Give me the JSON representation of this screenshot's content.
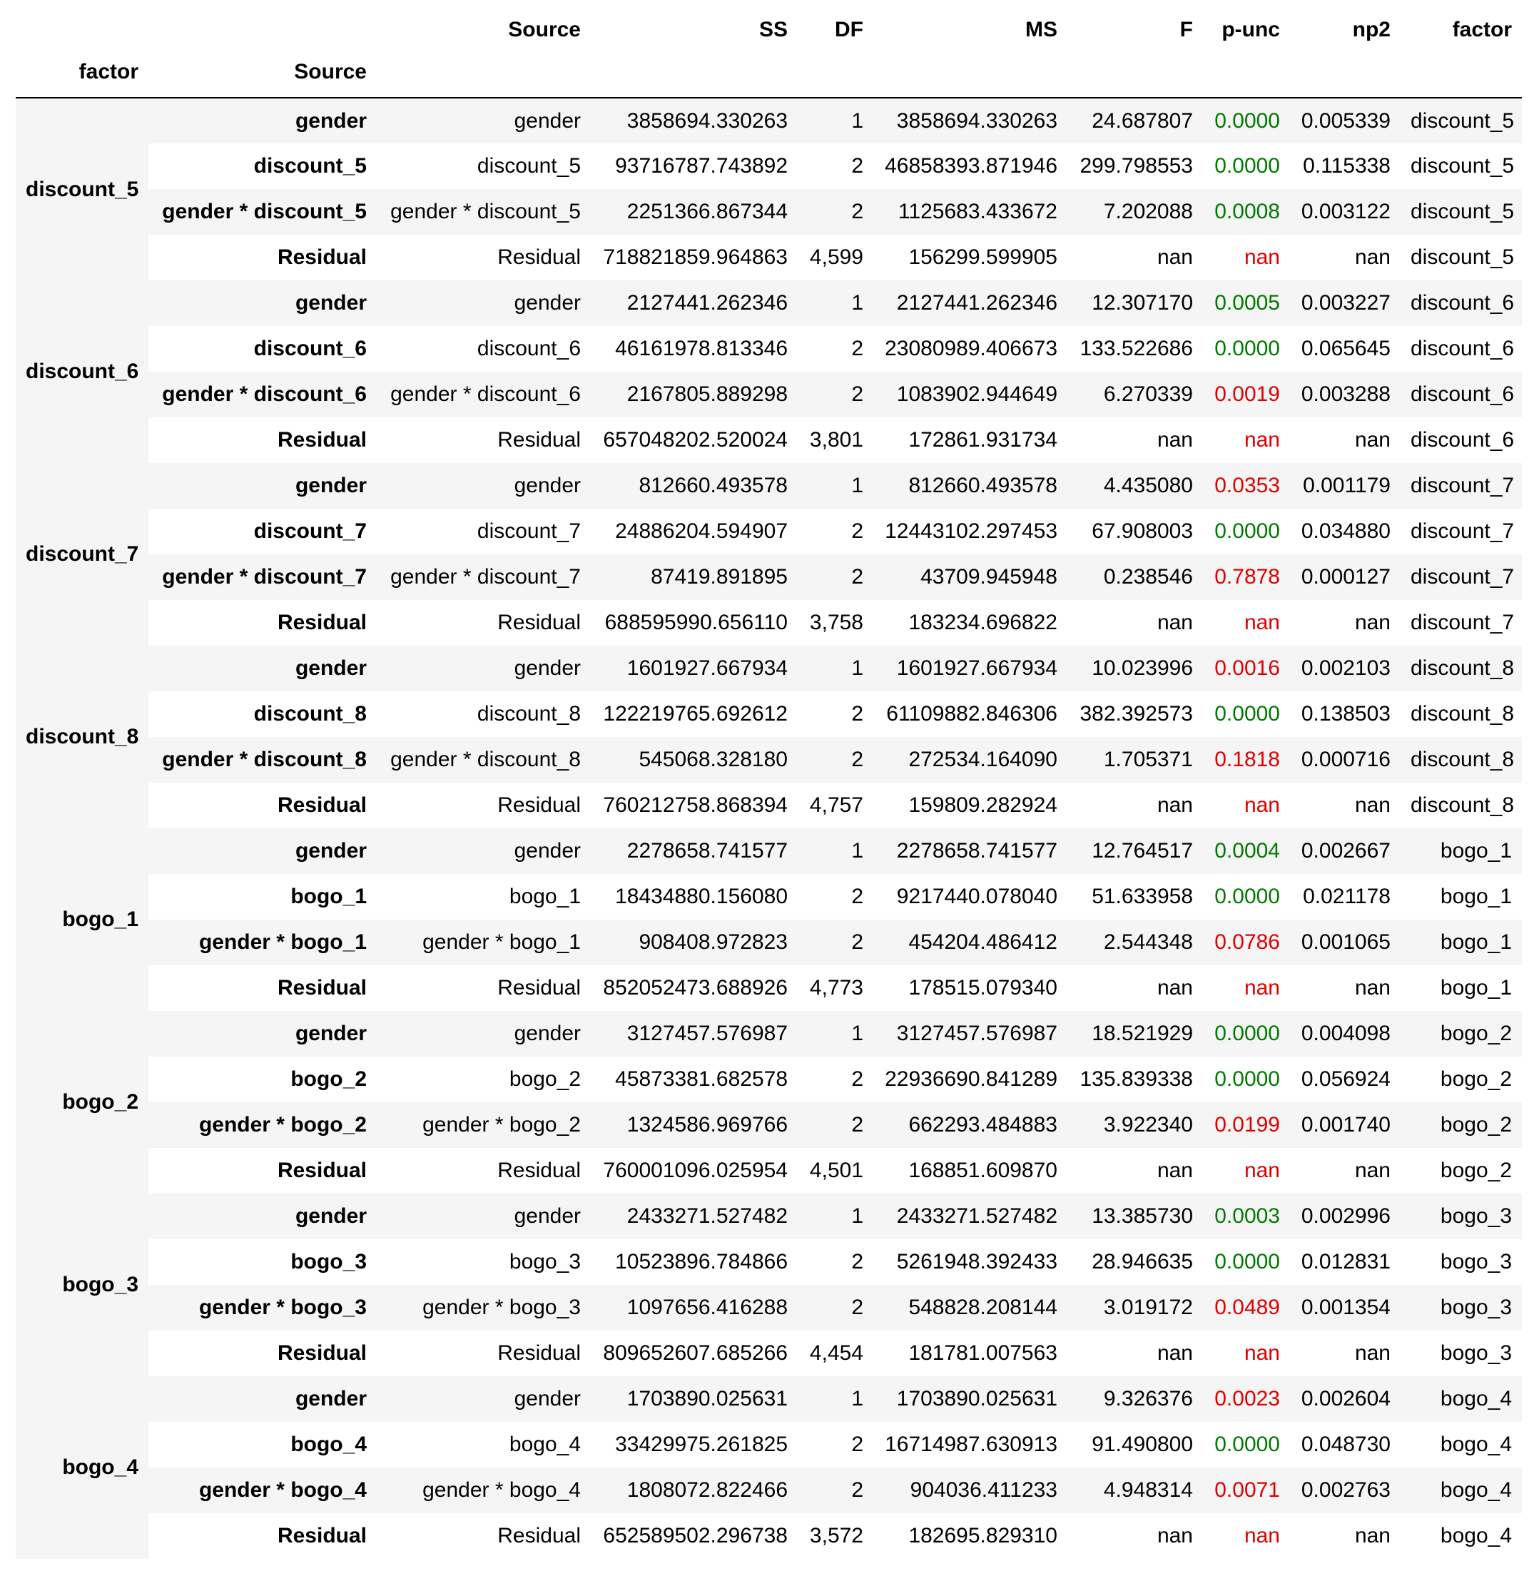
{
  "columns": {
    "source": "Source",
    "ss": "SS",
    "df": "DF",
    "ms": "MS",
    "f": "F",
    "p": "p-unc",
    "np2": "np2",
    "factor": "factor"
  },
  "index_names": {
    "factor": "factor",
    "source": "Source"
  },
  "colors": {
    "significant": "#007a00",
    "not_significant": "#e00000"
  },
  "groups": [
    {
      "factor": "discount_5",
      "rows": [
        {
          "idx": "gender",
          "source": "gender",
          "ss": "3858694.330263",
          "df": "1",
          "ms": "3858694.330263",
          "f": "24.687807",
          "p": "0.0000",
          "p_status": "sig",
          "np2": "0.005339",
          "factor": "discount_5"
        },
        {
          "idx": "discount_5",
          "source": "discount_5",
          "ss": "93716787.743892",
          "df": "2",
          "ms": "46858393.871946",
          "f": "299.798553",
          "p": "0.0000",
          "p_status": "sig",
          "np2": "0.115338",
          "factor": "discount_5"
        },
        {
          "idx": "gender * discount_5",
          "source": "gender * discount_5",
          "ss": "2251366.867344",
          "df": "2",
          "ms": "1125683.433672",
          "f": "7.202088",
          "p": "0.0008",
          "p_status": "sig",
          "np2": "0.003122",
          "factor": "discount_5"
        },
        {
          "idx": "Residual",
          "source": "Residual",
          "ss": "718821859.964863",
          "df": "4,599",
          "ms": "156299.599905",
          "f": "nan",
          "p": "nan",
          "p_status": "nonsig",
          "np2": "nan",
          "factor": "discount_5"
        }
      ]
    },
    {
      "factor": "discount_6",
      "rows": [
        {
          "idx": "gender",
          "source": "gender",
          "ss": "2127441.262346",
          "df": "1",
          "ms": "2127441.262346",
          "f": "12.307170",
          "p": "0.0005",
          "p_status": "sig",
          "np2": "0.003227",
          "factor": "discount_6"
        },
        {
          "idx": "discount_6",
          "source": "discount_6",
          "ss": "46161978.813346",
          "df": "2",
          "ms": "23080989.406673",
          "f": "133.522686",
          "p": "0.0000",
          "p_status": "sig",
          "np2": "0.065645",
          "factor": "discount_6"
        },
        {
          "idx": "gender * discount_6",
          "source": "gender * discount_6",
          "ss": "2167805.889298",
          "df": "2",
          "ms": "1083902.944649",
          "f": "6.270339",
          "p": "0.0019",
          "p_status": "nonsig",
          "np2": "0.003288",
          "factor": "discount_6"
        },
        {
          "idx": "Residual",
          "source": "Residual",
          "ss": "657048202.520024",
          "df": "3,801",
          "ms": "172861.931734",
          "f": "nan",
          "p": "nan",
          "p_status": "nonsig",
          "np2": "nan",
          "factor": "discount_6"
        }
      ]
    },
    {
      "factor": "discount_7",
      "rows": [
        {
          "idx": "gender",
          "source": "gender",
          "ss": "812660.493578",
          "df": "1",
          "ms": "812660.493578",
          "f": "4.435080",
          "p": "0.0353",
          "p_status": "nonsig",
          "np2": "0.001179",
          "factor": "discount_7"
        },
        {
          "idx": "discount_7",
          "source": "discount_7",
          "ss": "24886204.594907",
          "df": "2",
          "ms": "12443102.297453",
          "f": "67.908003",
          "p": "0.0000",
          "p_status": "sig",
          "np2": "0.034880",
          "factor": "discount_7"
        },
        {
          "idx": "gender * discount_7",
          "source": "gender * discount_7",
          "ss": "87419.891895",
          "df": "2",
          "ms": "43709.945948",
          "f": "0.238546",
          "p": "0.7878",
          "p_status": "nonsig",
          "np2": "0.000127",
          "factor": "discount_7"
        },
        {
          "idx": "Residual",
          "source": "Residual",
          "ss": "688595990.656110",
          "df": "3,758",
          "ms": "183234.696822",
          "f": "nan",
          "p": "nan",
          "p_status": "nonsig",
          "np2": "nan",
          "factor": "discount_7"
        }
      ]
    },
    {
      "factor": "discount_8",
      "rows": [
        {
          "idx": "gender",
          "source": "gender",
          "ss": "1601927.667934",
          "df": "1",
          "ms": "1601927.667934",
          "f": "10.023996",
          "p": "0.0016",
          "p_status": "nonsig",
          "np2": "0.002103",
          "factor": "discount_8"
        },
        {
          "idx": "discount_8",
          "source": "discount_8",
          "ss": "122219765.692612",
          "df": "2",
          "ms": "61109882.846306",
          "f": "382.392573",
          "p": "0.0000",
          "p_status": "sig",
          "np2": "0.138503",
          "factor": "discount_8"
        },
        {
          "idx": "gender * discount_8",
          "source": "gender * discount_8",
          "ss": "545068.328180",
          "df": "2",
          "ms": "272534.164090",
          "f": "1.705371",
          "p": "0.1818",
          "p_status": "nonsig",
          "np2": "0.000716",
          "factor": "discount_8"
        },
        {
          "idx": "Residual",
          "source": "Residual",
          "ss": "760212758.868394",
          "df": "4,757",
          "ms": "159809.282924",
          "f": "nan",
          "p": "nan",
          "p_status": "nonsig",
          "np2": "nan",
          "factor": "discount_8"
        }
      ]
    },
    {
      "factor": "bogo_1",
      "rows": [
        {
          "idx": "gender",
          "source": "gender",
          "ss": "2278658.741577",
          "df": "1",
          "ms": "2278658.741577",
          "f": "12.764517",
          "p": "0.0004",
          "p_status": "sig",
          "np2": "0.002667",
          "factor": "bogo_1"
        },
        {
          "idx": "bogo_1",
          "source": "bogo_1",
          "ss": "18434880.156080",
          "df": "2",
          "ms": "9217440.078040",
          "f": "51.633958",
          "p": "0.0000",
          "p_status": "sig",
          "np2": "0.021178",
          "factor": "bogo_1"
        },
        {
          "idx": "gender * bogo_1",
          "source": "gender * bogo_1",
          "ss": "908408.972823",
          "df": "2",
          "ms": "454204.486412",
          "f": "2.544348",
          "p": "0.0786",
          "p_status": "nonsig",
          "np2": "0.001065",
          "factor": "bogo_1"
        },
        {
          "idx": "Residual",
          "source": "Residual",
          "ss": "852052473.688926",
          "df": "4,773",
          "ms": "178515.079340",
          "f": "nan",
          "p": "nan",
          "p_status": "nonsig",
          "np2": "nan",
          "factor": "bogo_1"
        }
      ]
    },
    {
      "factor": "bogo_2",
      "rows": [
        {
          "idx": "gender",
          "source": "gender",
          "ss": "3127457.576987",
          "df": "1",
          "ms": "3127457.576987",
          "f": "18.521929",
          "p": "0.0000",
          "p_status": "sig",
          "np2": "0.004098",
          "factor": "bogo_2"
        },
        {
          "idx": "bogo_2",
          "source": "bogo_2",
          "ss": "45873381.682578",
          "df": "2",
          "ms": "22936690.841289",
          "f": "135.839338",
          "p": "0.0000",
          "p_status": "sig",
          "np2": "0.056924",
          "factor": "bogo_2"
        },
        {
          "idx": "gender * bogo_2",
          "source": "gender * bogo_2",
          "ss": "1324586.969766",
          "df": "2",
          "ms": "662293.484883",
          "f": "3.922340",
          "p": "0.0199",
          "p_status": "nonsig",
          "np2": "0.001740",
          "factor": "bogo_2"
        },
        {
          "idx": "Residual",
          "source": "Residual",
          "ss": "760001096.025954",
          "df": "4,501",
          "ms": "168851.609870",
          "f": "nan",
          "p": "nan",
          "p_status": "nonsig",
          "np2": "nan",
          "factor": "bogo_2"
        }
      ]
    },
    {
      "factor": "bogo_3",
      "rows": [
        {
          "idx": "gender",
          "source": "gender",
          "ss": "2433271.527482",
          "df": "1",
          "ms": "2433271.527482",
          "f": "13.385730",
          "p": "0.0003",
          "p_status": "sig",
          "np2": "0.002996",
          "factor": "bogo_3"
        },
        {
          "idx": "bogo_3",
          "source": "bogo_3",
          "ss": "10523896.784866",
          "df": "2",
          "ms": "5261948.392433",
          "f": "28.946635",
          "p": "0.0000",
          "p_status": "sig",
          "np2": "0.012831",
          "factor": "bogo_3"
        },
        {
          "idx": "gender * bogo_3",
          "source": "gender * bogo_3",
          "ss": "1097656.416288",
          "df": "2",
          "ms": "548828.208144",
          "f": "3.019172",
          "p": "0.0489",
          "p_status": "nonsig",
          "np2": "0.001354",
          "factor": "bogo_3"
        },
        {
          "idx": "Residual",
          "source": "Residual",
          "ss": "809652607.685266",
          "df": "4,454",
          "ms": "181781.007563",
          "f": "nan",
          "p": "nan",
          "p_status": "nonsig",
          "np2": "nan",
          "factor": "bogo_3"
        }
      ]
    },
    {
      "factor": "bogo_4",
      "rows": [
        {
          "idx": "gender",
          "source": "gender",
          "ss": "1703890.025631",
          "df": "1",
          "ms": "1703890.025631",
          "f": "9.326376",
          "p": "0.0023",
          "p_status": "nonsig",
          "np2": "0.002604",
          "factor": "bogo_4"
        },
        {
          "idx": "bogo_4",
          "source": "bogo_4",
          "ss": "33429975.261825",
          "df": "2",
          "ms": "16714987.630913",
          "f": "91.490800",
          "p": "0.0000",
          "p_status": "sig",
          "np2": "0.048730",
          "factor": "bogo_4"
        },
        {
          "idx": "gender * bogo_4",
          "source": "gender * bogo_4",
          "ss": "1808072.822466",
          "df": "2",
          "ms": "904036.411233",
          "f": "4.948314",
          "p": "0.0071",
          "p_status": "nonsig",
          "np2": "0.002763",
          "factor": "bogo_4"
        },
        {
          "idx": "Residual",
          "source": "Residual",
          "ss": "652589502.296738",
          "df": "3,572",
          "ms": "182695.829310",
          "f": "nan",
          "p": "nan",
          "p_status": "nonsig",
          "np2": "nan",
          "factor": "bogo_4"
        }
      ]
    }
  ]
}
